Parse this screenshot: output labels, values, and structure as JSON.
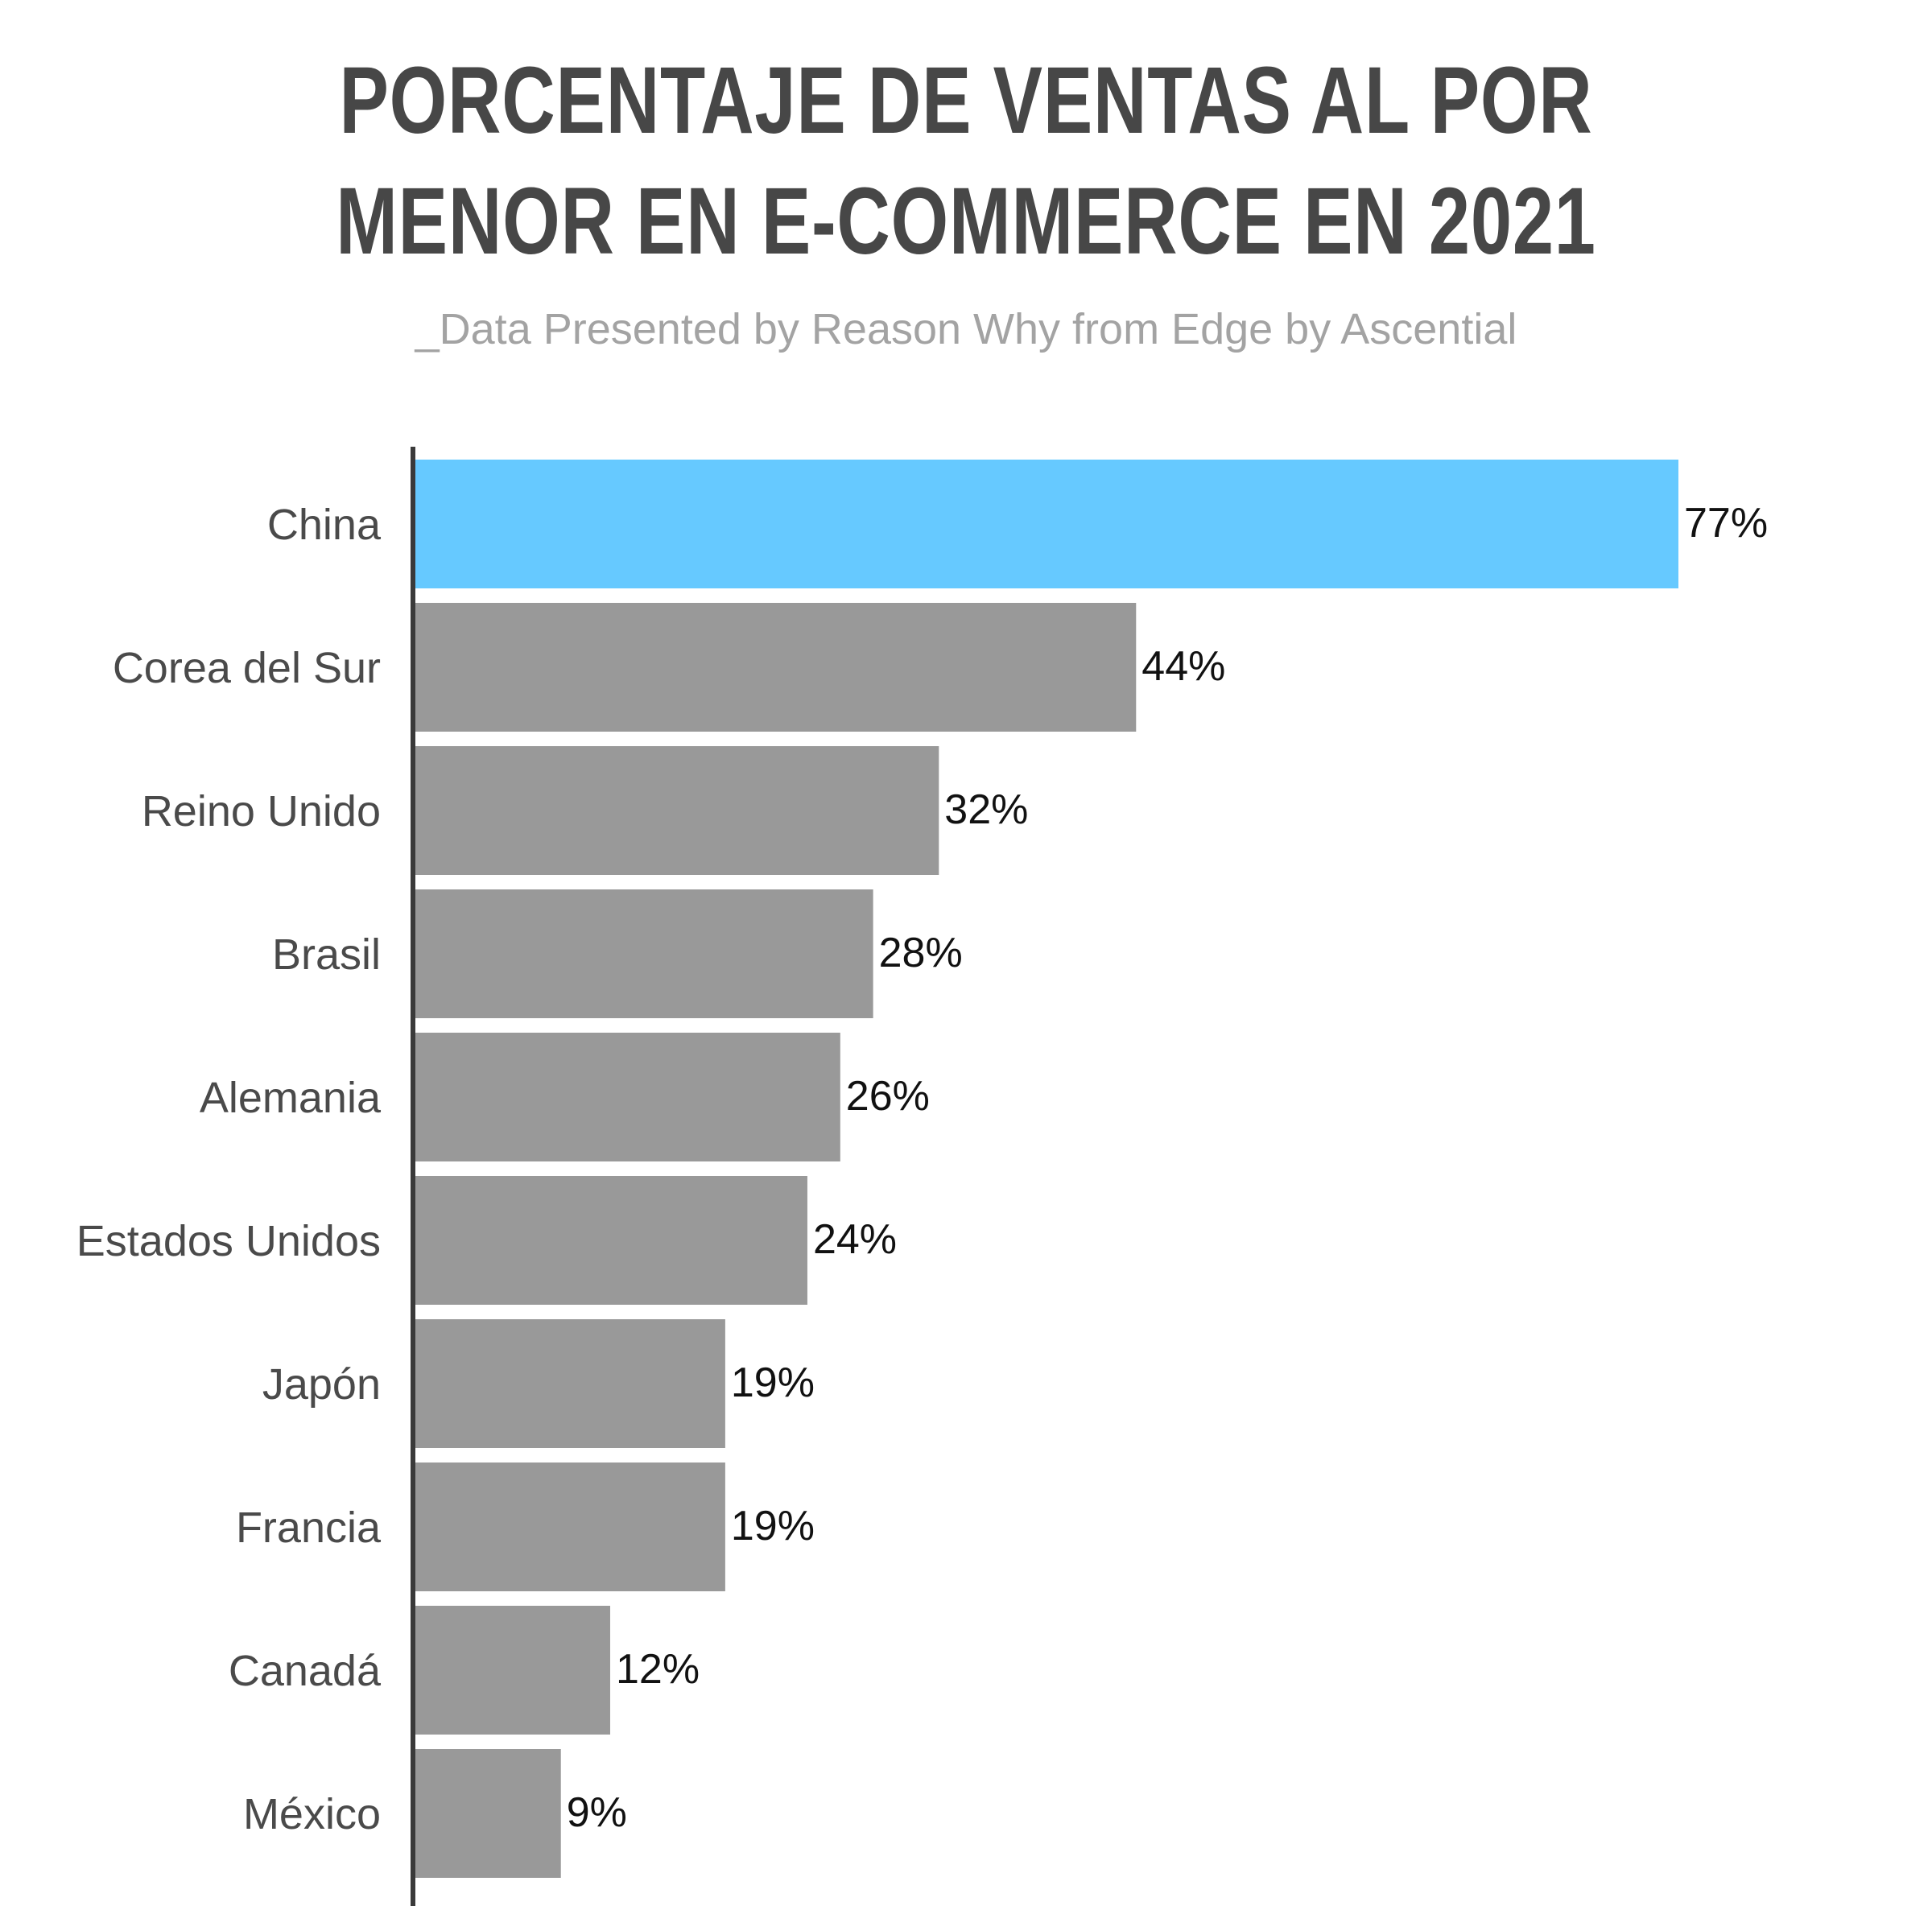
{
  "title_line1": "PORCENTAJE DE VENTAS AL POR",
  "title_line2": "MENOR EN E-COMMERCE EN 2021",
  "subtitle": "_Data Presented by Reason Why from Edge by Ascential",
  "colors": {
    "highlight": "#66c9ff",
    "bar": "#999999",
    "axis": "#3a3a3a",
    "title": "#474747",
    "subtitle": "#a3a3a3"
  },
  "chart_data": {
    "type": "bar",
    "orientation": "horizontal",
    "title": "PORCENTAJE DE VENTAS AL POR MENOR EN E-COMMERCE EN 2021",
    "subtitle": "_Data Presented by Reason Why from Edge by Ascential",
    "categories": [
      "China",
      "Corea del Sur",
      "Reino Unido",
      "Brasil",
      "Alemania",
      "Estados Unidos",
      "Japón",
      "Francia",
      "Canadá",
      "México"
    ],
    "values": [
      77,
      44,
      32,
      28,
      26,
      24,
      19,
      19,
      12,
      9
    ],
    "value_labels": [
      "77%",
      "44%",
      "32%",
      "28%",
      "26%",
      "24%",
      "19%",
      "19%",
      "12%",
      "9%"
    ],
    "highlighted": "China",
    "xlim": [
      0,
      77
    ],
    "grid": false,
    "legend": "none"
  }
}
